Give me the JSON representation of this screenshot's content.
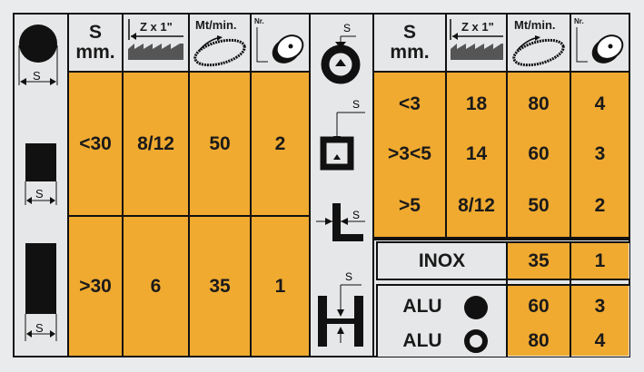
{
  "colors": {
    "orange": "#f0aa30",
    "gray": "#e6e7e8",
    "line": "#111111"
  },
  "header": {
    "s_line1": "S",
    "s_line2": "mm.",
    "teeth": "Z x 1\"",
    "speed": "Mt/min.",
    "wheel_nr": "Nr.",
    "dim_letter": "S"
  },
  "left_rows": [
    {
      "shape": "solid-square",
      "s": "<30",
      "z": "8/12",
      "mt": "50",
      "nr": "2"
    },
    {
      "shape": "solid-rectangle",
      "s": ">30",
      "z": "6",
      "mt": "35",
      "nr": "1"
    }
  ],
  "right_rows": [
    {
      "s": "<3",
      "z": "18",
      "mt": "80",
      "nr": "4"
    },
    {
      "s": ">3<5",
      "z": "14",
      "mt": "60",
      "nr": "3"
    },
    {
      "s": ">5",
      "z": "8/12",
      "mt": "50",
      "nr": "2"
    }
  ],
  "inox": {
    "label": "INOX",
    "mt": "35",
    "nr": "1"
  },
  "alu": [
    {
      "label": "ALU",
      "shape": "solid-circle",
      "mt": "60",
      "nr": "3"
    },
    {
      "label": "ALU",
      "shape": "ring",
      "mt": "80",
      "nr": "4"
    }
  ]
}
